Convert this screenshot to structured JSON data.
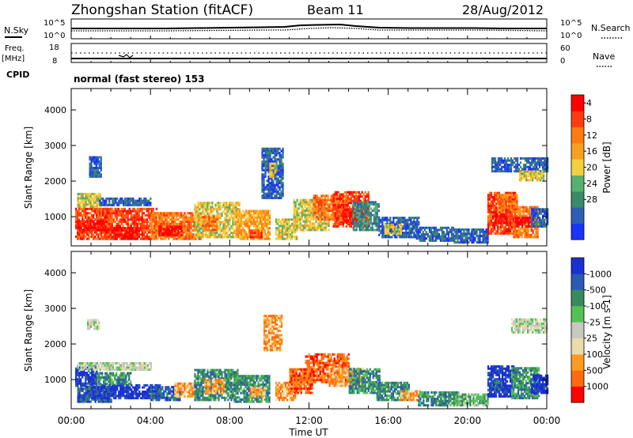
{
  "header": {
    "title": "Zhongshan Station (fitACF)",
    "beam": "Beam 11",
    "date": "28/Aug/2012"
  },
  "top_panels": {
    "nsky_label": "N.Sky",
    "nsearch_label": "N.Search",
    "noise_tick_high": "10^5",
    "noise_tick_low": "10^0",
    "freq_label_1": "Freq.",
    "freq_label_2": "[MHz]",
    "freq_tick_high": "18",
    "freq_tick_low": "8",
    "nave_label": "Nave",
    "nave_tick_high": "60",
    "nave_tick_low": "0",
    "cpid_label": "CPID",
    "cpid_text": "normal (fast stereo) 153"
  },
  "colors": {
    "power": [
      "#1a34ff",
      "#2e5fb5",
      "#3b8a6b",
      "#56b070",
      "#f2d040",
      "#f7a020",
      "#ff7a10",
      "#ff3a10",
      "#ff0000"
    ],
    "velocity": [
      "#ff0000",
      "#ff6a10",
      "#ff9a20",
      "#e8dcaa",
      "#c8c8c0",
      "#55c055",
      "#3a8a60",
      "#2a5ab5",
      "#1a30d0"
    ]
  },
  "chart_data": [
    {
      "type": "heatmap",
      "name": "power",
      "ylabel": "Slant Range [km]",
      "ylim": [
        180,
        4600
      ],
      "yticks": [
        1000,
        2000,
        3000,
        4000
      ],
      "x": [
        "00:00",
        "04:00",
        "08:00",
        "12:00",
        "16:00",
        "20:00",
        "00:00"
      ],
      "colorbar": {
        "label": "Power [dB]",
        "ticks": [
          "4",
          "8",
          "12",
          "16",
          "20",
          "24",
          "28"
        ],
        "range": [
          0,
          32
        ]
      },
      "cells": [
        {
          "t0": 0.2,
          "t1": 2.0,
          "r0": 350,
          "r1": 1200,
          "lvl": 7
        },
        {
          "t0": 0.3,
          "t1": 1.9,
          "r0": 600,
          "r1": 900,
          "lvl": 8
        },
        {
          "t0": 0.3,
          "t1": 1.5,
          "r0": 1250,
          "r1": 1650,
          "lvl": 4
        },
        {
          "t0": 0.9,
          "t1": 1.5,
          "r0": 2100,
          "r1": 2650,
          "lvl": 1
        },
        {
          "t0": 1.7,
          "t1": 4.3,
          "r0": 350,
          "r1": 1200,
          "lvl": 7
        },
        {
          "t0": 2.1,
          "t1": 3.4,
          "r0": 350,
          "r1": 700,
          "lvl": 8
        },
        {
          "t0": 1.4,
          "t1": 4.0,
          "r0": 1300,
          "r1": 1500,
          "lvl": 1
        },
        {
          "t0": 4.0,
          "t1": 6.5,
          "r0": 350,
          "r1": 1100,
          "lvl": 6
        },
        {
          "t0": 4.4,
          "t1": 5.6,
          "r0": 450,
          "r1": 700,
          "lvl": 8
        },
        {
          "t0": 6.2,
          "t1": 8.5,
          "r0": 400,
          "r1": 1400,
          "lvl": 4
        },
        {
          "t0": 6.6,
          "t1": 7.4,
          "r0": 600,
          "r1": 1000,
          "lvl": 6
        },
        {
          "t0": 8.3,
          "t1": 10.0,
          "r0": 350,
          "r1": 1150,
          "lvl": 5
        },
        {
          "t0": 9.0,
          "t1": 9.6,
          "r0": 400,
          "r1": 600,
          "lvl": 7
        },
        {
          "t0": 9.6,
          "t1": 10.7,
          "r0": 1500,
          "r1": 2900,
          "lvl": 1
        },
        {
          "t0": 10.0,
          "t1": 10.4,
          "r0": 2100,
          "r1": 2500,
          "lvl": 4
        },
        {
          "t0": 10.3,
          "t1": 11.4,
          "r0": 350,
          "r1": 900,
          "lvl": 4
        },
        {
          "t0": 11.2,
          "t1": 13.0,
          "r0": 600,
          "r1": 1500,
          "lvl": 4
        },
        {
          "t0": 12.2,
          "t1": 13.9,
          "r0": 900,
          "r1": 1600,
          "lvl": 6
        },
        {
          "t0": 13.2,
          "t1": 15.0,
          "r0": 700,
          "r1": 1700,
          "lvl": 7
        },
        {
          "t0": 13.7,
          "t1": 14.5,
          "r0": 800,
          "r1": 1200,
          "lvl": 8
        },
        {
          "t0": 14.2,
          "t1": 15.5,
          "r0": 600,
          "r1": 1400,
          "lvl": 2
        },
        {
          "t0": 15.5,
          "t1": 17.5,
          "r0": 400,
          "r1": 1000,
          "lvl": 1
        },
        {
          "t0": 15.8,
          "t1": 16.6,
          "r0": 500,
          "r1": 800,
          "lvl": 4
        },
        {
          "t0": 17.4,
          "t1": 19.3,
          "r0": 300,
          "r1": 700,
          "lvl": 1
        },
        {
          "t0": 19.3,
          "t1": 21.0,
          "r0": 250,
          "r1": 650,
          "lvl": 1
        },
        {
          "t0": 21.0,
          "t1": 22.4,
          "r0": 500,
          "r1": 1700,
          "lvl": 7
        },
        {
          "t0": 21.3,
          "t1": 22.0,
          "r0": 800,
          "r1": 1200,
          "lvl": 8
        },
        {
          "t0": 21.5,
          "t1": 22.5,
          "r0": 1100,
          "r1": 1600,
          "lvl": 6
        },
        {
          "t0": 22.3,
          "t1": 23.5,
          "r0": 400,
          "r1": 1300,
          "lvl": 6
        },
        {
          "t0": 22.4,
          "t1": 23.2,
          "r0": 700,
          "r1": 1000,
          "lvl": 8
        },
        {
          "t0": 21.2,
          "t1": 24.0,
          "r0": 2250,
          "r1": 2650,
          "lvl": 1
        },
        {
          "t0": 22.6,
          "t1": 23.8,
          "r0": 2000,
          "r1": 2300,
          "lvl": 4
        },
        {
          "t0": 23.2,
          "t1": 24.0,
          "r0": 700,
          "r1": 1200,
          "lvl": 1
        }
      ]
    },
    {
      "type": "heatmap",
      "name": "velocity",
      "ylabel": "Slant Range [km]",
      "xlabel": "Time UT",
      "ylim": [
        180,
        4600
      ],
      "yticks": [
        1000,
        2000,
        3000,
        4000
      ],
      "x": [
        "00:00",
        "04:00",
        "08:00",
        "12:00",
        "16:00",
        "20:00",
        "00:00"
      ],
      "colorbar": {
        "label": "Velocity [m s-1]",
        "ticks": [
          "1000",
          "500",
          "100",
          "25",
          "-25",
          "-100",
          "-500",
          "-1000"
        ]
      },
      "cells": [
        {
          "t0": 0.2,
          "t1": 1.3,
          "r0": 800,
          "r1": 1400,
          "lvl": 8
        },
        {
          "t0": 0.3,
          "t1": 2.0,
          "r0": 350,
          "r1": 800,
          "lvl": 7
        },
        {
          "t0": 1.0,
          "t1": 4.5,
          "r0": 450,
          "r1": 850,
          "lvl": 8
        },
        {
          "t0": 1.2,
          "t1": 3.0,
          "r0": 850,
          "r1": 1200,
          "lvl": 6
        },
        {
          "t0": 0.3,
          "t1": 4.0,
          "r0": 1250,
          "r1": 1450,
          "lvl": 4
        },
        {
          "t0": 0.8,
          "t1": 1.4,
          "r0": 2400,
          "r1": 2700,
          "lvl": 4
        },
        {
          "t0": 4.0,
          "t1": 5.5,
          "r0": 400,
          "r1": 800,
          "lvl": 7
        },
        {
          "t0": 5.2,
          "t1": 6.4,
          "r0": 500,
          "r1": 900,
          "lvl": 2
        },
        {
          "t0": 6.2,
          "t1": 8.4,
          "r0": 400,
          "r1": 1300,
          "lvl": 6
        },
        {
          "t0": 6.7,
          "t1": 7.7,
          "r0": 600,
          "r1": 1000,
          "lvl": 2
        },
        {
          "t0": 8.2,
          "t1": 10.0,
          "r0": 350,
          "r1": 1100,
          "lvl": 6
        },
        {
          "t0": 9.0,
          "t1": 9.8,
          "r0": 500,
          "r1": 800,
          "lvl": 2
        },
        {
          "t0": 9.7,
          "t1": 10.6,
          "r0": 1800,
          "r1": 2800,
          "lvl": 2
        },
        {
          "t0": 10.3,
          "t1": 11.3,
          "r0": 400,
          "r1": 900,
          "lvl": 2
        },
        {
          "t0": 11.0,
          "t1": 12.2,
          "r0": 600,
          "r1": 1300,
          "lvl": 1
        },
        {
          "t0": 11.8,
          "t1": 14.0,
          "r0": 900,
          "r1": 1700,
          "lvl": 1
        },
        {
          "t0": 13.0,
          "t1": 14.8,
          "r0": 800,
          "r1": 1300,
          "lvl": 2
        },
        {
          "t0": 14.0,
          "t1": 15.6,
          "r0": 600,
          "r1": 1300,
          "lvl": 6
        },
        {
          "t0": 15.4,
          "t1": 17.0,
          "r0": 400,
          "r1": 900,
          "lvl": 6
        },
        {
          "t0": 16.6,
          "t1": 17.6,
          "r0": 400,
          "r1": 700,
          "lvl": 2
        },
        {
          "t0": 17.5,
          "t1": 19.5,
          "r0": 250,
          "r1": 650,
          "lvl": 6
        },
        {
          "t0": 19.3,
          "t1": 21.0,
          "r0": 250,
          "r1": 600,
          "lvl": 5
        },
        {
          "t0": 21.0,
          "t1": 22.3,
          "r0": 500,
          "r1": 1400,
          "lvl": 8
        },
        {
          "t0": 21.2,
          "t1": 21.8,
          "r0": 700,
          "r1": 1000,
          "lvl": 7
        },
        {
          "t0": 22.2,
          "t1": 23.6,
          "r0": 450,
          "r1": 1300,
          "lvl": 6
        },
        {
          "t0": 23.2,
          "t1": 24.0,
          "r0": 600,
          "r1": 1100,
          "lvl": 8
        },
        {
          "t0": 22.2,
          "t1": 24.0,
          "r0": 2300,
          "r1": 2700,
          "lvl": 4
        }
      ]
    }
  ]
}
